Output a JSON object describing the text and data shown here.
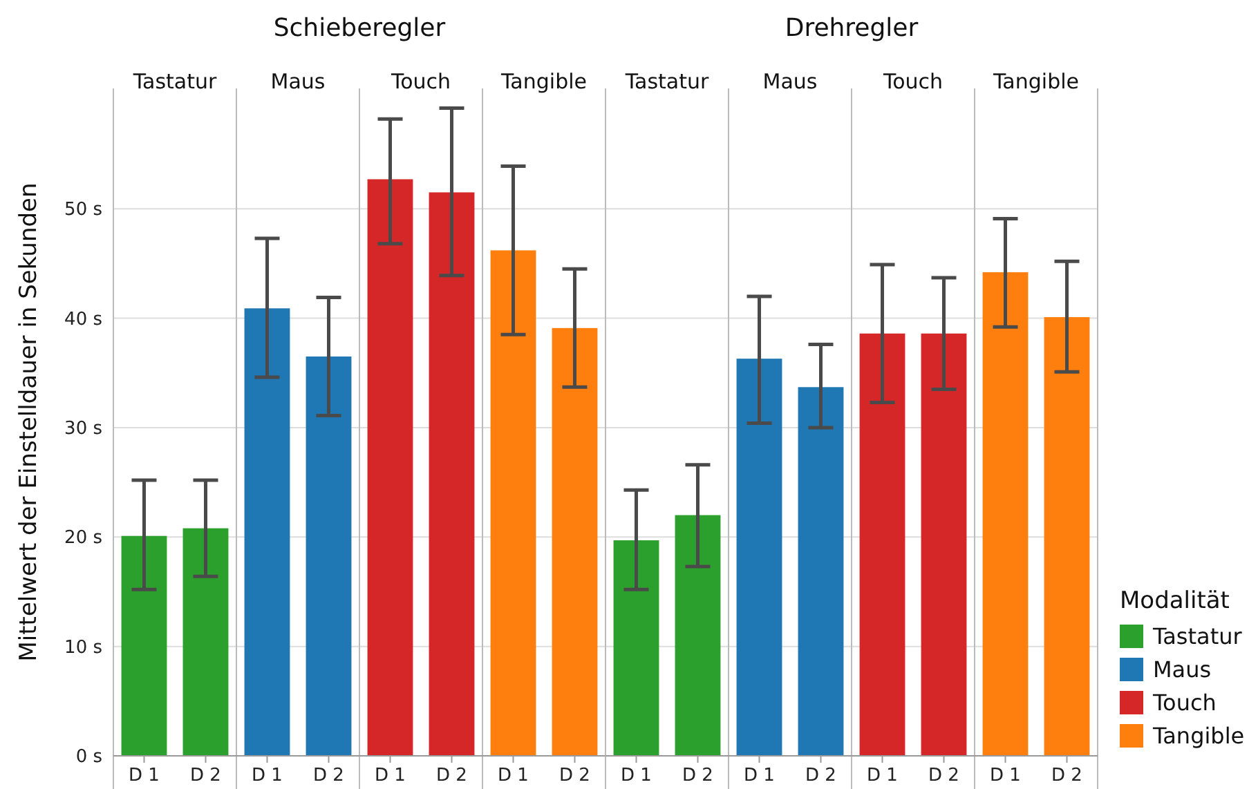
{
  "chart_data": [
    {
      "type": "bar",
      "title": "Schieberegler",
      "ylabel": "Mittelwert der Einstelldauer in Sekunden",
      "categories": [
        "D 1",
        "D 2",
        "D 1",
        "D 2",
        "D 1",
        "D 2",
        "D 1",
        "D 2"
      ],
      "annotations": [
        "Tastatur",
        "Maus",
        "Touch",
        "Tangible"
      ],
      "series": [
        {
          "color": "#2ca02c",
          "values": [
            20.1,
            20.8,
            null,
            null,
            null,
            null,
            null,
            null
          ],
          "errors": [
            [
              15.2,
              25.2
            ],
            [
              16.4,
              25.2
            ],
            null,
            null,
            null,
            null,
            null,
            null
          ]
        },
        {
          "color": "#1f77b4",
          "values": [
            null,
            null,
            40.9,
            36.5,
            null,
            null,
            null,
            null
          ],
          "errors": [
            null,
            null,
            [
              34.6,
              47.3
            ],
            [
              31.1,
              41.9
            ],
            null,
            null,
            null,
            null
          ]
        },
        {
          "color": "#d62728",
          "values": [
            null,
            null,
            null,
            null,
            52.7,
            51.5,
            null,
            null
          ],
          "errors": [
            null,
            null,
            null,
            null,
            [
              46.8,
              58.2
            ],
            [
              43.9,
              59.2
            ],
            null,
            null
          ]
        },
        {
          "color": "#ff7f0e",
          "values": [
            null,
            null,
            null,
            null,
            null,
            null,
            46.2,
            39.1
          ],
          "errors": [
            null,
            null,
            null,
            null,
            null,
            null,
            [
              38.5,
              53.9
            ],
            [
              33.7,
              44.5
            ]
          ]
        }
      ],
      "ylim": [
        0,
        61
      ],
      "yticks": [
        {
          "value": 0,
          "label": "0 s"
        },
        {
          "value": 10,
          "label": "10 s"
        },
        {
          "value": 20,
          "label": "20 s"
        },
        {
          "value": 30,
          "label": "30 s"
        },
        {
          "value": 40,
          "label": "40 s"
        },
        {
          "value": 50,
          "label": "50 s"
        }
      ],
      "grid": "y",
      "legend": false
    },
    {
      "type": "bar",
      "title": "Drehregler",
      "legend_title": "Modalität",
      "categories": [
        "D 1",
        "D 2",
        "D 1",
        "D 2",
        "D 1",
        "D 2",
        "D 1",
        "D 2"
      ],
      "annotations": [
        "Tastatur",
        "Maus",
        "Touch",
        "Tangible"
      ],
      "series": [
        {
          "name": "Tastatur",
          "color": "#2ca02c",
          "values": [
            19.7,
            22.0,
            null,
            null,
            null,
            null,
            null,
            null
          ],
          "errors": [
            [
              15.2,
              24.3
            ],
            [
              17.3,
              26.6
            ],
            null,
            null,
            null,
            null,
            null,
            null
          ]
        },
        {
          "name": "Maus",
          "color": "#1f77b4",
          "values": [
            null,
            null,
            36.3,
            33.7,
            null,
            null,
            null,
            null
          ],
          "errors": [
            null,
            null,
            [
              30.4,
              42.0
            ],
            [
              30.0,
              37.6
            ],
            null,
            null,
            null,
            null
          ]
        },
        {
          "name": "Touch",
          "color": "#d62728",
          "values": [
            null,
            null,
            null,
            null,
            38.6,
            38.6,
            null,
            null
          ],
          "errors": [
            null,
            null,
            null,
            null,
            [
              32.3,
              44.9
            ],
            [
              33.5,
              43.7
            ],
            null,
            null
          ]
        },
        {
          "name": "Tangible",
          "color": "#ff7f0e",
          "values": [
            null,
            null,
            null,
            null,
            null,
            null,
            44.2,
            40.1
          ],
          "errors": [
            null,
            null,
            null,
            null,
            null,
            null,
            [
              39.2,
              49.1
            ],
            [
              35.1,
              45.2
            ]
          ]
        }
      ],
      "ylim": [
        0,
        61
      ],
      "yticks": [
        {
          "value": 0,
          "label": null
        },
        {
          "value": 10,
          "label": null
        },
        {
          "value": 20,
          "label": null
        },
        {
          "value": 30,
          "label": null
        },
        {
          "value": 40,
          "label": null
        },
        {
          "value": 50,
          "label": null
        }
      ],
      "grid": "y",
      "legend": "right",
      "tick_labels": "x"
    }
  ]
}
